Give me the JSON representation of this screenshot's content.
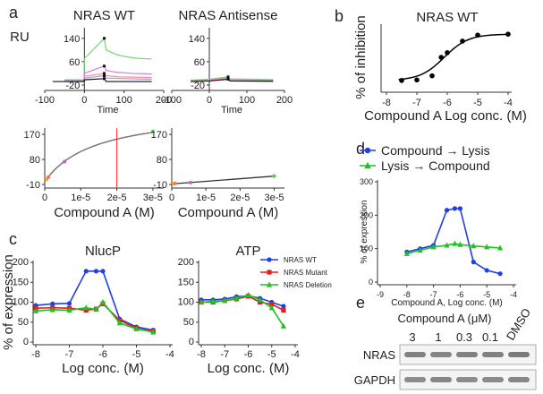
{
  "figure": {
    "panels": {
      "a": "a",
      "b": "b",
      "c": "c",
      "d": "d",
      "e": "e"
    }
  },
  "chart_data": [
    {
      "id": "a-wt-sensorgram",
      "type": "line",
      "title": "NRAS WT",
      "ylabel": "RU",
      "xlabel": "Time",
      "xlim": [
        -100,
        200
      ],
      "ylim": [
        -20,
        170
      ],
      "xticks": [
        -100,
        0,
        100,
        200
      ],
      "yticks": [
        -20,
        60,
        140
      ],
      "series": [
        {
          "color": "#6fd96f",
          "x": [
            -50,
            -1,
            0,
            50,
            55,
            80,
            100,
            130,
            170
          ],
          "y": [
            -2,
            -2,
            70,
            140,
            100,
            85,
            78,
            72,
            69
          ]
        },
        {
          "color": "#d080d8",
          "x": [
            -50,
            -1,
            0,
            50,
            55,
            80,
            120,
            170
          ],
          "y": [
            -3,
            -3,
            20,
            45,
            30,
            24,
            20,
            18
          ]
        },
        {
          "color": "#ff9090",
          "x": [
            -50,
            -1,
            0,
            50,
            55,
            90,
            170
          ],
          "y": [
            -5,
            -5,
            10,
            20,
            12,
            8,
            6
          ]
        },
        {
          "color": "#9a9aff",
          "x": [
            -50,
            -1,
            0,
            50,
            55,
            100,
            170
          ],
          "y": [
            -7,
            -7,
            4,
            12,
            4,
            2,
            0
          ]
        },
        {
          "color": "#111111",
          "x": [
            -80,
            -1,
            0,
            50,
            55,
            170
          ],
          "y": [
            -8,
            -8,
            -2,
            2,
            -8,
            -8
          ]
        }
      ]
    },
    {
      "id": "a-antisense-sensorgram",
      "type": "line",
      "title": "NRAS Antisense",
      "xlabel": "Time",
      "xlim": [
        -100,
        200
      ],
      "ylim": [
        -20,
        170
      ],
      "xticks": [
        -100,
        0,
        100,
        200
      ],
      "yticks": [
        -20,
        60,
        140
      ],
      "series": [
        {
          "color": "#6fd96f",
          "x": [
            -50,
            0,
            50,
            55,
            170
          ],
          "y": [
            -3,
            0,
            8,
            1,
            -1
          ]
        },
        {
          "color": "#d080d8",
          "x": [
            -50,
            0,
            50,
            55,
            170
          ],
          "y": [
            -5,
            -2,
            5,
            -1,
            -3
          ]
        },
        {
          "color": "#ff9090",
          "x": [
            -50,
            0,
            50,
            55,
            170
          ],
          "y": [
            -6,
            -4,
            3,
            -3,
            -5
          ]
        },
        {
          "color": "#111111",
          "x": [
            -50,
            0,
            50,
            55,
            170
          ],
          "y": [
            -8,
            -6,
            0,
            -6,
            -7
          ]
        }
      ]
    },
    {
      "id": "a-wt-affinity",
      "type": "scatter",
      "xlabel": "Compound A (M)",
      "xlim": [
        0,
        3.3e-05
      ],
      "ylim": [
        -10,
        180
      ],
      "xticks": [
        0,
        1e-05,
        2e-05,
        3e-05
      ],
      "xtick_labels": [
        "0",
        "1e-5",
        "2e-5",
        "3e-5"
      ],
      "yticks": [
        -10,
        80,
        170
      ],
      "fit": {
        "rmax": 260,
        "kd": 1.4e-05,
        "color": "#777777"
      },
      "kd_marker_x": 2e-05,
      "points": [
        {
          "x": 5e-07,
          "y": 8,
          "color": "#ffaa00"
        },
        {
          "x": 1e-06,
          "y": 16,
          "color": "#ff6a6a"
        },
        {
          "x": 5.5e-06,
          "y": 72,
          "color": "#c060d0"
        },
        {
          "x": 3e-05,
          "y": 181,
          "color": "#4fcf4f"
        }
      ]
    },
    {
      "id": "a-antisense-affinity",
      "type": "scatter",
      "xlabel": "Compound A (M)",
      "xlim": [
        0,
        3.3e-05
      ],
      "ylim": [
        -10,
        180
      ],
      "xticks": [
        0,
        1e-05,
        2e-05,
        3e-05
      ],
      "xtick_labels": [
        "0",
        "1e-5",
        "2e-5",
        "3e-5"
      ],
      "yticks": [
        -10,
        80,
        170
      ],
      "line": {
        "x": [
          0,
          3e-05
        ],
        "y": [
          -8,
          20
        ],
        "color": "#333333"
      },
      "points": [
        {
          "x": 5e-07,
          "y": -7,
          "color": "#ffaa00"
        },
        {
          "x": 1e-06,
          "y": -6,
          "color": "#ff6a6a"
        },
        {
          "x": 5.5e-06,
          "y": -3,
          "color": "#c060d0"
        },
        {
          "x": 3e-05,
          "y": 20,
          "color": "#4fcf4f"
        }
      ]
    },
    {
      "id": "b-inhibition",
      "type": "scatter",
      "title": "NRAS WT",
      "ylabel": "% of inhibition",
      "xlabel": "Compound A Log conc. (M)",
      "xlim": [
        -8,
        -4
      ],
      "ylim": [
        -10,
        110
      ],
      "xticks": [
        -8,
        -7,
        -6,
        -5,
        -4
      ],
      "fit": {
        "top": 100,
        "bottom": 0,
        "logec50": -6.1,
        "hill": 1.1,
        "color": "#000000"
      },
      "x": [
        -7.5,
        -7,
        -6.5,
        -6.2,
        -6,
        -5.5,
        -5,
        -4
      ],
      "y": [
        0,
        1,
        10,
        50,
        60,
        85,
        98,
        100
      ]
    },
    {
      "id": "c-nlucp",
      "type": "line",
      "title": "NlucP",
      "ylabel": "% of expression",
      "xlabel": "Log conc. (M)",
      "xlim": [
        -8,
        -4
      ],
      "ylim": [
        0,
        200
      ],
      "xticks": [
        -8,
        -7,
        -6,
        -5,
        -4
      ],
      "yticks": [
        0,
        50,
        100,
        150,
        200
      ],
      "x": [
        -8,
        -7.5,
        -7,
        -6.5,
        -6.2,
        -6,
        -5.5,
        -5,
        -4.5
      ],
      "series": [
        {
          "key": "wt",
          "color": "#1f3fe0",
          "marker": "circle",
          "y": [
            92,
            96,
            97,
            178,
            178,
            178,
            58,
            38,
            30
          ]
        },
        {
          "key": "mutant",
          "color": "#e02020",
          "marker": "square",
          "y": [
            85,
            86,
            85,
            80,
            83,
            96,
            55,
            34,
            27
          ]
        },
        {
          "key": "deletion",
          "color": "#22c022",
          "marker": "triangle",
          "y": [
            78,
            81,
            80,
            86,
            82,
            100,
            48,
            33,
            25
          ]
        }
      ]
    },
    {
      "id": "c-atp",
      "type": "line",
      "title": "ATP",
      "xlabel": "Log conc. (M)",
      "xlim": [
        -8,
        -4
      ],
      "ylim": [
        0,
        200
      ],
      "xticks": [
        -8,
        -7,
        -6,
        -5,
        -4
      ],
      "yticks": [
        0,
        50,
        100,
        150,
        200
      ],
      "x": [
        -8,
        -7.5,
        -7,
        -6.5,
        -6,
        -5.5,
        -5,
        -4.5
      ],
      "series": [
        {
          "key": "wt",
          "color": "#1f3fe0",
          "marker": "circle",
          "y": [
            106,
            106,
            108,
            114,
            116,
            110,
            100,
            90
          ]
        },
        {
          "key": "mutant",
          "color": "#e02020",
          "marker": "square",
          "y": [
            100,
            100,
            104,
            108,
            115,
            100,
            95,
            80
          ]
        },
        {
          "key": "deletion",
          "color": "#22c022",
          "marker": "triangle",
          "y": [
            100,
            102,
            104,
            110,
            118,
            106,
            86,
            40
          ]
        }
      ],
      "legend": {
        "placement": "top-right",
        "entries": [
          {
            "key": "wt",
            "label": "NRAS WT"
          },
          {
            "key": "mutant",
            "label": "NRAS Mutant"
          },
          {
            "key": "deletion",
            "label": "NRAS Deletion"
          }
        ]
      }
    },
    {
      "id": "d-order",
      "type": "line",
      "ylabel": "% of expression",
      "xlabel": "Compound A, Log conc. (M)",
      "xlim": [
        -9,
        -4
      ],
      "ylim": [
        0,
        300
      ],
      "xticks": [
        -9,
        -8,
        -7,
        -6,
        -5,
        -4
      ],
      "yticks": [
        0,
        100,
        200,
        300
      ],
      "x": [
        -8,
        -7.5,
        -7,
        -6.5,
        -6.2,
        -6,
        -5.5,
        -5,
        -4.5
      ],
      "series": [
        {
          "key": "cl",
          "color": "#1f3fe0",
          "marker": "circle",
          "y": [
            90,
            100,
            110,
            215,
            220,
            220,
            60,
            35,
            25
          ]
        },
        {
          "key": "lc",
          "color": "#22c022",
          "marker": "triangle",
          "y": [
            85,
            95,
            105,
            110,
            115,
            112,
            108,
            105,
            102
          ]
        }
      ],
      "legend": {
        "placement": "top",
        "entries": [
          {
            "key": "cl",
            "label": "Compound → Lysis"
          },
          {
            "key": "lc",
            "label": "Lysis → Compound"
          }
        ]
      }
    }
  ],
  "western_blot": {
    "title": "Compound A (μM)",
    "lanes": [
      "3",
      "1",
      "0.3",
      "0.1",
      "DMSO"
    ],
    "rows": [
      {
        "label": "NRAS",
        "intensity": [
          0.8,
          0.75,
          0.8,
          0.8,
          0.85
        ]
      },
      {
        "label": "GAPDH",
        "intensity": [
          0.7,
          0.75,
          0.7,
          0.72,
          0.75
        ]
      }
    ]
  }
}
